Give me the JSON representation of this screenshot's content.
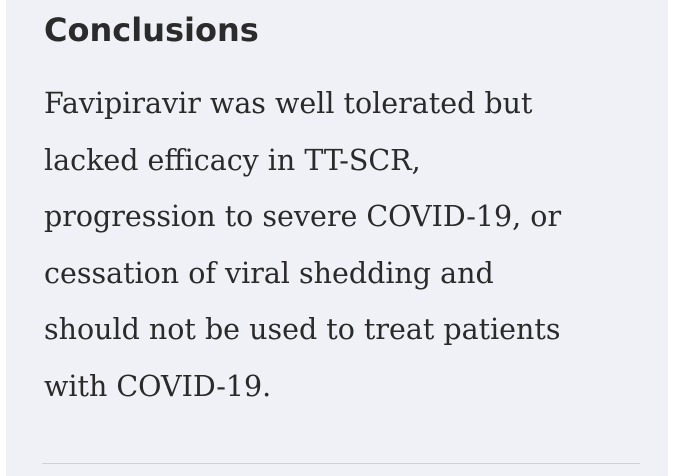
{
  "section": {
    "heading": "Conclusions",
    "lines": [
      "Favipiravir was well tolerated but",
      "lacked efficacy in TT-SCR,",
      "progression to severe COVID-19, or",
      "cessation of viral shedding and",
      "should not be used to treat patients",
      "with COVID-19."
    ]
  }
}
